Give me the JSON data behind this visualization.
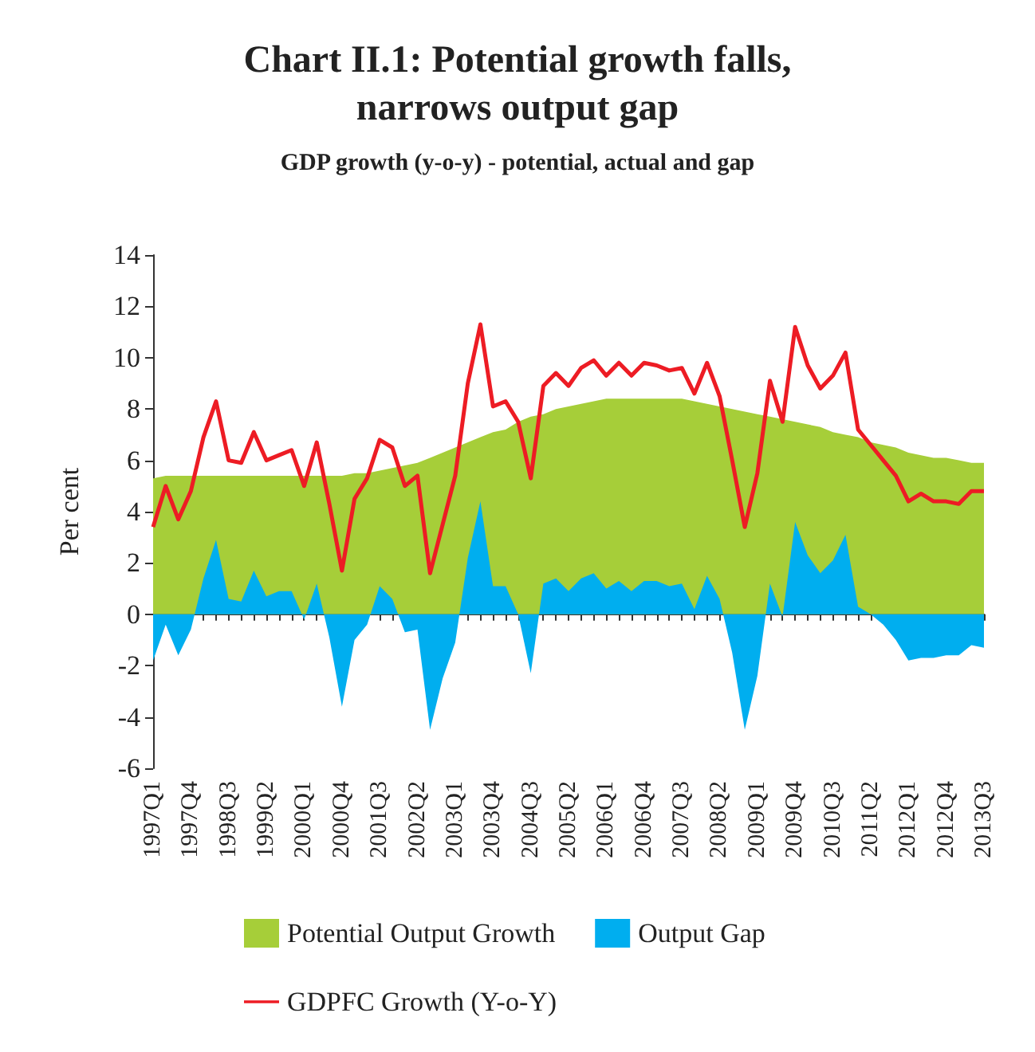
{
  "chart_data": {
    "type": "area",
    "title": "Chart II.1: Potential growth falls,\nnarrows output gap",
    "subtitle": "GDP growth (y-o-y) - potential, actual and gap",
    "ylabel": "Per cent",
    "categories": [
      "1997Q1",
      null,
      null,
      "1997Q4",
      null,
      null,
      "1998Q3",
      null,
      null,
      "1999Q2",
      null,
      null,
      "2000Q1",
      null,
      null,
      "2000Q4",
      null,
      null,
      "2001Q3",
      null,
      null,
      "2002Q2",
      null,
      null,
      "2003Q1",
      null,
      null,
      "2003Q4",
      null,
      null,
      "2004Q3",
      null,
      null,
      "2005Q2",
      null,
      null,
      "2006Q1",
      null,
      null,
      "2006Q4",
      null,
      null,
      "2007Q3",
      null,
      null,
      "2008Q2",
      null,
      null,
      "2009Q1",
      null,
      null,
      "2009Q4",
      null,
      null,
      "2010Q3",
      null,
      null,
      "2011Q2",
      null,
      null,
      "2012Q1",
      null,
      null,
      "2012Q4",
      null,
      null,
      "2013Q3"
    ],
    "series": [
      {
        "name": "Potential Output Growth",
        "color": "#a6ce39",
        "values": [
          5.3,
          5.4,
          5.4,
          5.4,
          5.4,
          5.4,
          5.4,
          5.4,
          5.4,
          5.4,
          5.4,
          5.4,
          5.4,
          5.4,
          5.4,
          5.4,
          5.5,
          5.5,
          5.6,
          5.7,
          5.8,
          5.9,
          6.1,
          6.3,
          6.5,
          6.7,
          6.9,
          7.1,
          7.2,
          7.5,
          7.7,
          7.8,
          8.0,
          8.1,
          8.2,
          8.3,
          8.4,
          8.4,
          8.4,
          8.4,
          8.4,
          8.4,
          8.4,
          8.3,
          8.2,
          8.1,
          8.0,
          7.9,
          7.8,
          7.7,
          7.6,
          7.5,
          7.4,
          7.3,
          7.1,
          7.0,
          6.9,
          6.7,
          6.6,
          6.5,
          6.3,
          6.2,
          6.1,
          6.1,
          6.0,
          5.9,
          5.9
        ]
      },
      {
        "name": "Output Gap",
        "color": "#00aeef",
        "values": [
          -1.8,
          -0.4,
          -1.6,
          -0.6,
          1.4,
          2.9,
          0.6,
          0.5,
          1.7,
          0.7,
          0.9,
          0.9,
          -0.2,
          1.2,
          -0.9,
          -3.6,
          -1.0,
          -0.4,
          1.1,
          0.6,
          -0.7,
          -0.6,
          -4.5,
          -2.5,
          -1.1,
          2.2,
          4.4,
          1.1,
          1.1,
          0.0,
          -2.3,
          1.2,
          1.4,
          0.9,
          1.4,
          1.6,
          1.0,
          1.3,
          0.9,
          1.3,
          1.3,
          1.1,
          1.2,
          0.2,
          1.5,
          0.6,
          -1.5,
          -4.5,
          -2.4,
          1.2,
          -0.1,
          3.6,
          2.3,
          1.6,
          2.1,
          3.1,
          0.3,
          0.0,
          -0.4,
          -1.0,
          -1.8,
          -1.7,
          -1.7,
          -1.6,
          -1.6,
          -1.2,
          -1.3
        ]
      },
      {
        "name": "GDPFC Growth (Y-o-Y)",
        "type": "line",
        "color": "#ed1c24",
        "values": [
          3.4,
          5.0,
          3.7,
          4.8,
          6.9,
          8.3,
          6.0,
          5.9,
          7.1,
          6.0,
          6.2,
          6.4,
          5.0,
          6.7,
          4.3,
          1.7,
          4.5,
          5.3,
          6.8,
          6.5,
          5.0,
          5.4,
          1.6,
          3.5,
          5.4,
          9.0,
          11.3,
          8.1,
          8.3,
          7.5,
          5.3,
          8.9,
          9.4,
          8.9,
          9.6,
          9.9,
          9.3,
          9.8,
          9.3,
          9.8,
          9.7,
          9.5,
          9.6,
          8.6,
          9.8,
          8.5,
          6.0,
          3.4,
          5.5,
          9.1,
          7.5,
          11.2,
          9.7,
          8.8,
          9.3,
          10.2,
          7.2,
          6.6,
          6.0,
          5.4,
          4.4,
          4.7,
          4.4,
          4.4,
          4.3,
          4.8,
          4.8
        ]
      }
    ],
    "ylim": [
      -6,
      14
    ],
    "yticks": [
      -6,
      -4,
      -2,
      0,
      2,
      4,
      6,
      8,
      10,
      12,
      14
    ],
    "legend": "bottom",
    "marker": "none",
    "line_style": "solid"
  }
}
